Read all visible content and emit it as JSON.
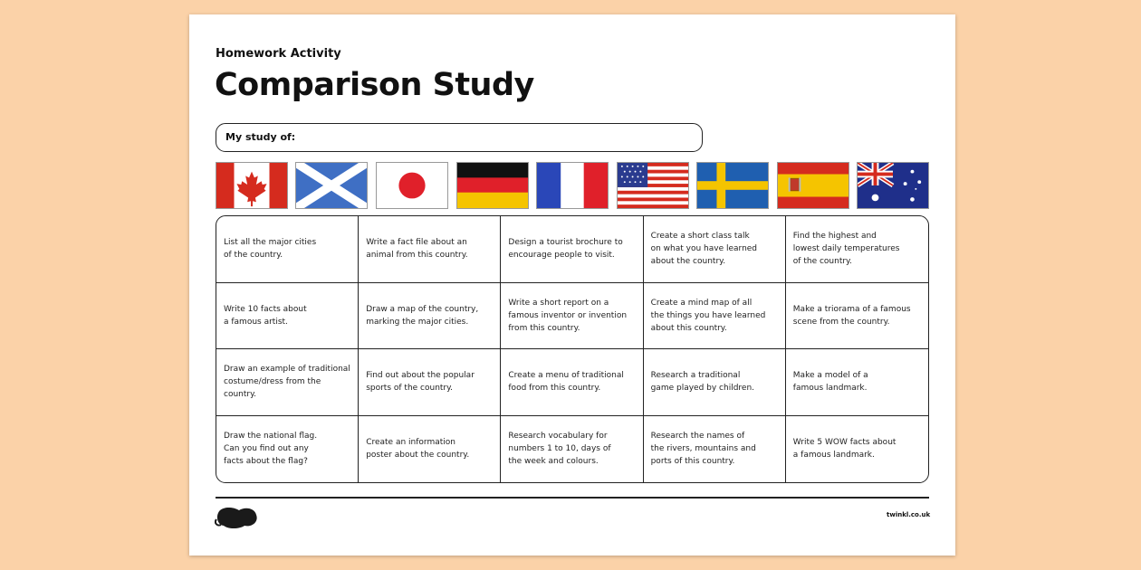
{
  "header": {
    "subtitle": "Homework Activity",
    "title": "Comparison Study"
  },
  "study_field": {
    "label": "My study of:"
  },
  "flags": [
    "canada-flag-icon",
    "scotland-flag-icon",
    "japan-flag-icon",
    "germany-flag-icon",
    "france-flag-icon",
    "usa-flag-icon",
    "sweden-flag-icon",
    "spain-flag-icon",
    "australia-flag-icon"
  ],
  "tasks": {
    "rows": [
      [
        "List all the major cities\nof the country.",
        "Write a fact file about an\nanimal from this country.",
        "Design a tourist brochure to\nencourage people to visit.",
        "Create a short class talk\non what you have learned\nabout the country.",
        "Find the highest and\nlowest daily temperatures\nof the country."
      ],
      [
        "Write 10 facts about\na famous artist.",
        "Draw a map of the country,\nmarking the major cities.",
        "Write a short report on a\nfamous inventor or invention\nfrom this country.",
        "Create a mind map of all\nthe things you have learned\nabout this country.",
        "Make a triorama of a famous\nscene from the country."
      ],
      [
        "Draw an example of traditional\ncostume/dress from the country.",
        "Find out about the popular\nsports of the country.",
        "Create a menu of traditional\nfood from this country.",
        "Research a traditional\ngame played by children.",
        "Make a model of a\nfamous landmark."
      ],
      [
        "Draw the national flag.\nCan you find out any\nfacts about the flag?",
        "Create an information\nposter about the country.",
        "Research vocabulary for\nnumbers 1 to 10, days of\nthe week and colours.",
        "Research the names of\nthe rivers, mountains and\nports of this country.",
        "Write 5 WOW facts about\na famous landmark."
      ]
    ]
  },
  "footer": {
    "logo_text": "twinkl",
    "url": "twinkl.co.uk"
  },
  "colors": {
    "background": "#fbd2a8",
    "sheet": "#ffffff",
    "logo": "#1a1a1a"
  }
}
